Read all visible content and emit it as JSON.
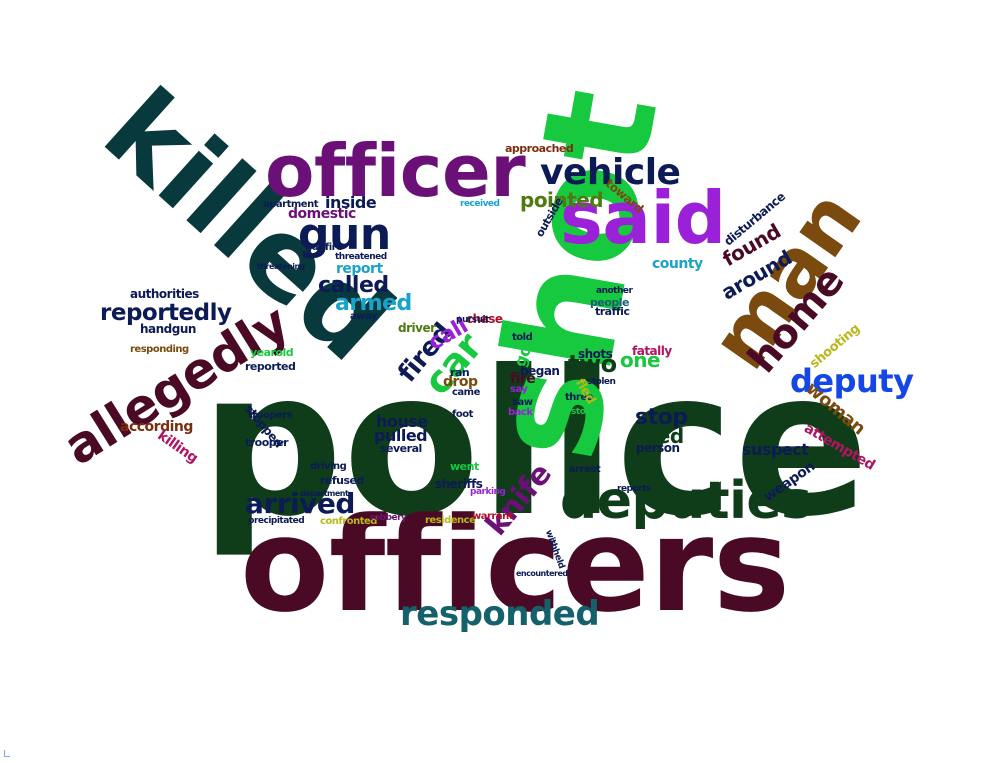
{
  "colors": {
    "background": "#ffffff",
    "darkgreen": "#0f3d1a",
    "teal": "#07393d",
    "maroon": "#4a0a25",
    "purple": "#6b1077",
    "green": "#16c93e",
    "violet": "#9b21d8",
    "brown": "#7a4a0e",
    "blue": "#1447e6",
    "navy": "#0c1b55"
  },
  "words": [
    {
      "text": "police",
      "color": "#0f3d1a"
    },
    {
      "text": "officers",
      "color": "#4a0a25"
    },
    {
      "text": "shot",
      "color": "#16c93e"
    },
    {
      "text": "killed",
      "color": "#07393d"
    },
    {
      "text": "officer",
      "color": "#6b1077"
    },
    {
      "text": "said",
      "color": "#9b21d8"
    },
    {
      "text": "man",
      "color": "#7a4a0e"
    },
    {
      "text": "allegedly",
      "color": "#4a0a25"
    },
    {
      "text": "deputies",
      "color": "#0f3d1a"
    },
    {
      "text": "vehicle",
      "color": "#0c1b55"
    },
    {
      "text": "gun",
      "color": "#0c1b55"
    },
    {
      "text": "home",
      "color": "#4a0a25"
    },
    {
      "text": "deputy",
      "color": "#1447e6"
    },
    {
      "text": "responded",
      "color": "#14606b"
    },
    {
      "text": "car",
      "color": "#16c93e"
    },
    {
      "text": "knife",
      "color": "#6b1077"
    },
    {
      "text": "arrived",
      "color": "#0c1b55"
    },
    {
      "text": "reportedly",
      "color": "#0c1b55"
    },
    {
      "text": "fired",
      "color": "#0c1b55"
    },
    {
      "text": "two",
      "color": "#0f3d1a"
    },
    {
      "text": "found",
      "color": "#4a0a25"
    },
    {
      "text": "around",
      "color": "#0c1b55"
    },
    {
      "text": "called",
      "color": "#0c1b55"
    },
    {
      "text": "armed",
      "color": "#1aa3c9"
    },
    {
      "text": "call",
      "color": "#9b21d8"
    },
    {
      "text": "woman",
      "color": "#7a4a0e"
    },
    {
      "text": "pointed",
      "color": "#4f7a12"
    },
    {
      "text": "one",
      "color": "#16c93e"
    },
    {
      "text": "stop",
      "color": "#0c1b55"
    },
    {
      "text": "tried",
      "color": "#0f3d1a"
    },
    {
      "text": "suspect",
      "color": "#0c1b55"
    },
    {
      "text": "according",
      "color": "#7a2e0e"
    },
    {
      "text": "inside",
      "color": "#0c1b55"
    },
    {
      "text": "domestic",
      "color": "#6b1077"
    },
    {
      "text": "house",
      "color": "#0c1b55"
    },
    {
      "text": "pulled",
      "color": "#0c1b55"
    },
    {
      "text": "killing",
      "color": "#b01560"
    },
    {
      "text": "weapon",
      "color": "#0c1b55"
    },
    {
      "text": "attempted",
      "color": "#b01560"
    },
    {
      "text": "shooting",
      "color": "#b8b81a"
    },
    {
      "text": "authorities",
      "color": "#0c1b55"
    },
    {
      "text": "handgun",
      "color": "#0c1b55"
    },
    {
      "text": "county",
      "color": "#1aa3c9"
    },
    {
      "text": "report",
      "color": "#1aa3c9"
    },
    {
      "text": "disturbance",
      "color": "#0c1b55"
    },
    {
      "text": "approached",
      "color": "#7a2e0e"
    },
    {
      "text": "toward",
      "color": "#7a4a0e"
    },
    {
      "text": "outside",
      "color": "#0c1b55"
    },
    {
      "text": "fire",
      "color": "#4a0a25"
    },
    {
      "text": "drop",
      "color": "#7a4a0e"
    },
    {
      "text": "ran",
      "color": "#0c1b55"
    },
    {
      "text": "got",
      "color": "#16c93e"
    },
    {
      "text": "began",
      "color": "#0c1b55"
    },
    {
      "text": "shots",
      "color": "#0c1b55"
    },
    {
      "text": "fatally",
      "color": "#b01560"
    },
    {
      "text": "person",
      "color": "#0c1b55"
    },
    {
      "text": "several",
      "color": "#0c1b55"
    },
    {
      "text": "sheriffs",
      "color": "#0c1b55"
    },
    {
      "text": "refused",
      "color": "#0c1b55"
    },
    {
      "text": "driving",
      "color": "#0c1b55"
    },
    {
      "text": "trooper",
      "color": "#0c1b55"
    },
    {
      "text": "troopers",
      "color": "#0c1b55"
    },
    {
      "text": "stopped",
      "color": "#0c1b55"
    },
    {
      "text": "reported",
      "color": "#0c1b55"
    },
    {
      "text": "yearold",
      "color": "#16c93e"
    },
    {
      "text": "away",
      "color": "#0c1b55"
    },
    {
      "text": "driver",
      "color": "#4f7a12"
    },
    {
      "text": "chase",
      "color": "#b0102a"
    },
    {
      "text": "told",
      "color": "#0c1b55"
    },
    {
      "text": "say",
      "color": "#9b21d8"
    },
    {
      "text": "saw",
      "color": "#0c1b55"
    },
    {
      "text": "back",
      "color": "#9b21d8"
    },
    {
      "text": "came",
      "color": "#0c1b55"
    },
    {
      "text": "foot",
      "color": "#0c1b55"
    },
    {
      "text": "went",
      "color": "#16c93e"
    },
    {
      "text": "traffic",
      "color": "#0c1b55"
    },
    {
      "text": "people",
      "color": "#14606b"
    },
    {
      "text": "another",
      "color": "#0c1b55"
    },
    {
      "text": "stolen",
      "color": "#0c1b55"
    },
    {
      "text": "store",
      "color": "#16c93e"
    },
    {
      "text": "arrest",
      "color": "#0c1b55"
    },
    {
      "text": "three",
      "color": "#0c1b55"
    },
    {
      "text": "reports",
      "color": "#0c1b55"
    },
    {
      "text": "precipitated",
      "color": "#0c1b55"
    },
    {
      "text": "confronted",
      "color": "#b8b81a"
    },
    {
      "text": "robbery",
      "color": "#6b1077"
    },
    {
      "text": "residence",
      "color": "#b8b81a"
    },
    {
      "text": "warrant",
      "color": "#b0102a"
    },
    {
      "text": "parking",
      "color": "#9b21d8"
    },
    {
      "text": "gunfire",
      "color": "#0c1b55"
    },
    {
      "text": "threatened",
      "color": "#0c1b55"
    },
    {
      "text": "apartment",
      "color": "#0c1b55"
    },
    {
      "text": "responding",
      "color": "#7a4a0e"
    },
    {
      "text": "received",
      "color": "#1aa3c9"
    },
    {
      "text": "threatening",
      "color": "#0c1b55"
    },
    {
      "text": "pursuit",
      "color": "#0c1b55"
    },
    {
      "text": "fled",
      "color": "#b8b81a"
    },
    {
      "text": "department",
      "color": "#0c1b55"
    },
    {
      "text": "withheld",
      "color": "#0c1b55"
    },
    {
      "text": "encountered",
      "color": "#0c1b55"
    }
  ]
}
